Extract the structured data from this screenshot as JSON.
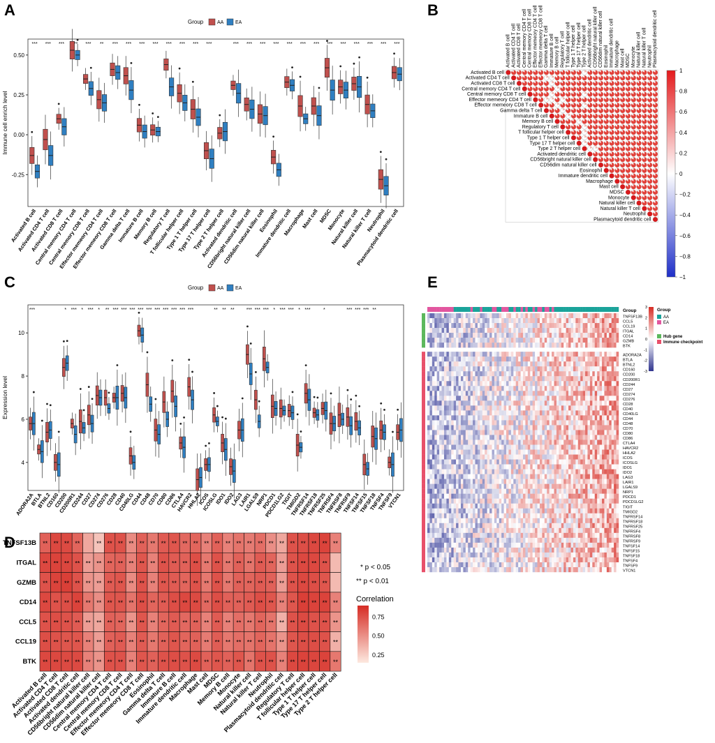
{
  "panels": {
    "a": {
      "letter": "A"
    },
    "b": {
      "letter": "B"
    },
    "c": {
      "letter": "C"
    },
    "d": {
      "letter": "D"
    },
    "e": {
      "letter": "E"
    }
  },
  "chart_data": [
    {
      "id": "A",
      "type": "boxplot",
      "title": "",
      "ylabel": "Immune cell enrich level",
      "xlabel": "",
      "ylim": [
        -0.45,
        0.6
      ],
      "yticks": [
        -0.25,
        0.0,
        0.25,
        0.5
      ],
      "ytick_labels": [
        "-0.25",
        "0.00",
        "0.25",
        "0.50"
      ],
      "legend_title": "Group",
      "groups": [
        "AA",
        "EA"
      ],
      "group_colors": [
        "#c0504d",
        "#2f7fc1"
      ],
      "categories": [
        "Activated B cell",
        "Activated CD4 T cell",
        "Activated CD8 T cell",
        "Central memory CD4 T cell",
        "Central memory CD8 T cell",
        "Effector memeory CD4 T cell",
        "Effector memeory CD8 T cell",
        "Gamma delta T cell",
        "Immature  B cell",
        "Memory B cell",
        "Regulatory T cell",
        "T follicular helper cell",
        "Type 1 T helper cell",
        "Type 17 T helper cell",
        "Type 2 T helper cell",
        "Activated dendritic cell",
        "CD56bright natural killer cell",
        "CD56dim natural killer cell",
        "Eosinophil",
        "Immature dendritic cell",
        "Macrophage",
        "Mast cell",
        "MDSC",
        "Monocyte",
        "Natural killer cell",
        "Natural killer T cell",
        "Neutrophil",
        "Plasmacytoid dendritic cell"
      ],
      "significance": [
        "***",
        "***",
        "***",
        "***",
        "***",
        "**",
        "***",
        "***",
        "***",
        "***",
        "***",
        "***",
        "***",
        "***",
        "",
        "***",
        "***",
        "***",
        "***",
        "***",
        "***",
        "***",
        "***",
        "***",
        "***",
        "***",
        "***",
        "***"
      ],
      "series": [
        {
          "name": "AA",
          "medians": [
            -0.13,
            -0.03,
            0.1,
            0.53,
            0.35,
            0.22,
            0.41,
            0.37,
            0.06,
            0.03,
            0.44,
            0.26,
            0.16,
            -0.1,
            0.01,
            0.31,
            0.19,
            0.13,
            -0.14,
            0.33,
            0.18,
            0.18,
            0.42,
            0.3,
            0.32,
            0.19,
            -0.28,
            0.39
          ]
        },
        {
          "name": "EA",
          "medians": [
            -0.23,
            -0.13,
            0.05,
            0.5,
            0.29,
            0.2,
            0.39,
            0.28,
            0.02,
            0.02,
            0.3,
            0.2,
            0.11,
            -0.15,
            0.02,
            0.26,
            0.16,
            0.12,
            -0.22,
            0.31,
            0.1,
            0.12,
            0.28,
            0.28,
            0.3,
            0.15,
            -0.32,
            0.38
          ]
        }
      ]
    },
    {
      "id": "B",
      "type": "correlogram",
      "labels": [
        "Activated B cell",
        "Activated CD4 T cell",
        "Activated CD8 T cell",
        "Central memory CD4 T cell",
        "Central memory CD8 T cell",
        "Effector memeory CD4 T cell",
        "Effector memeory CD8 T cell",
        "Gamma delta T cell",
        "Immature  B cell",
        "Memory B cell",
        "Regulatory T cell",
        "T follicular helper cell",
        "Type 1 T helper cell",
        "Type 17 T helper cell",
        "Type 2 T helper cell",
        "Activated dendritic cell",
        "CD56bright natural killer cell",
        "CD56dim natural killer cell",
        "Eosinophil",
        "Immature dendritic cell",
        "Macrophage",
        "Mast cell",
        "MDSC",
        "Monocyte",
        "Natural killer cell",
        "Natural killer T cell",
        "Neutrophil",
        "Plasmacytoid dendritic cell"
      ],
      "colorbar": {
        "min": -1,
        "max": 1,
        "ticks": [
          1,
          0.8,
          0.6,
          0.4,
          0.2,
          0,
          -0.2,
          -0.4,
          -0.6,
          -0.8,
          -1
        ],
        "tick_labels": [
          "1",
          "0.8",
          "0.6",
          "0.4",
          "0.2",
          "0",
          "−0.2",
          "−0.4",
          "−0.6",
          "−0.8",
          "−1"
        ]
      },
      "weak_cells": [
        [
          1,
          7
        ],
        [
          1,
          8
        ],
        [
          2,
          8
        ],
        [
          3,
          9
        ],
        [
          4,
          8
        ],
        [
          5,
          7
        ],
        [
          5,
          8
        ],
        [
          5,
          10
        ],
        [
          6,
          9
        ],
        [
          8,
          11
        ],
        [
          7,
          10
        ],
        [
          9,
          13
        ],
        [
          10,
          14
        ],
        [
          11,
          14
        ],
        [
          12,
          14
        ],
        [
          13,
          14
        ],
        [
          4,
          14
        ],
        [
          6,
          14
        ],
        [
          0,
          14
        ],
        [
          14,
          15
        ],
        [
          14,
          16
        ]
      ],
      "correlation_default": 0.85
    },
    {
      "id": "C",
      "type": "boxplot",
      "ylabel": "Expression level",
      "ylim": [
        2.7,
        11.3
      ],
      "yticks": [
        4,
        6,
        8,
        10
      ],
      "ytick_labels": [
        "4",
        "6",
        "8",
        "10"
      ],
      "legend_title": "Group",
      "groups": [
        "AA",
        "EA"
      ],
      "group_colors": [
        "#c0504d",
        "#2f7fc1"
      ],
      "categories": [
        "ADORA2A",
        "BTLA",
        "BTNL2",
        "CD160",
        "CD200",
        "CD200R1",
        "CD244",
        "CD27",
        "CD274",
        "CD276",
        "CD28",
        "CD40",
        "CD40LG",
        "CD44",
        "CD48",
        "CD70",
        "CD80",
        "CD86",
        "CTLA4",
        "HAVCR2",
        "HHLA2",
        "ICOS",
        "ICOSLG",
        "IDO1",
        "IDO2",
        "LAG3",
        "LAIR1",
        "LGALS9",
        "NRP1",
        "PDCD1",
        "PDCD1LG2",
        "TIGIT",
        "TMIGD2",
        "TNFRSF14",
        "TNFRSF18",
        "TNFRSF25",
        "TNFRSF4",
        "TNFRSF8",
        "TNFRSF9",
        "TNFSF14",
        "TNFSF15",
        "TNFSF18",
        "TNFSF4",
        "TNFSF9",
        "VTCN1"
      ],
      "significance": [
        "***",
        "",
        "",
        "",
        "*",
        "***",
        "*",
        "***",
        "*",
        "**",
        "***",
        "***",
        "***",
        "***",
        "***",
        "***",
        "***",
        "***",
        "***",
        "***",
        "",
        "",
        "**",
        "**",
        "**",
        "",
        "***",
        "***",
        "***",
        "*",
        "***",
        "***",
        "*",
        "***",
        "",
        "*",
        "",
        "",
        "***",
        "***",
        "***",
        "**",
        "",
        "",
        ""
      ],
      "series": [
        {
          "name": "AA",
          "medians": [
            5.8,
            4.6,
            5.4,
            4.0,
            8.4,
            5.8,
            5.9,
            6.2,
            7.1,
            7.0,
            7.0,
            7.2,
            4.3,
            10.1,
            7.6,
            5.5,
            6.8,
            7.3,
            4.9,
            7.5,
            3.2,
            3.9,
            6.2,
            4.9,
            3.8,
            5.5,
            9.0,
            6.9,
            8.8,
            6.6,
            6.5,
            6.4,
            4.8,
            7.2,
            6.3,
            6.5,
            5.8,
            6.2,
            6.1,
            5.9,
            3.9,
            5.2,
            5.5,
            4.0,
            5.4
          ]
        },
        {
          "name": "EA",
          "medians": [
            5.8,
            4.5,
            5.5,
            3.9,
            8.6,
            5.3,
            5.6,
            5.8,
            7.0,
            6.5,
            7.0,
            7.0,
            4.0,
            9.9,
            6.7,
            5.3,
            6.0,
            6.6,
            4.7,
            6.9,
            3.3,
            3.9,
            5.9,
            4.6,
            3.6,
            5.5,
            8.1,
            5.9,
            8.4,
            6.5,
            6.4,
            6.3,
            4.7,
            6.9,
            6.2,
            6.4,
            5.8,
            6.0,
            5.7,
            5.6,
            3.7,
            5.1,
            5.4,
            3.9,
            5.5
          ]
        }
      ]
    },
    {
      "id": "D",
      "type": "heatmap",
      "rows": [
        "TNFSF13B",
        "ITGAL",
        "GZMB",
        "CD14",
        "CCL5",
        "CCL19",
        "BTK"
      ],
      "columns": [
        "Activated B cell",
        "Activated CD4 T cell",
        "Activated CD8 T cell",
        "Activated dendritic cell",
        "CD56bright natural killer cell",
        "CD56dim natural killer cell",
        "Central memory CD4 T cell",
        "Central memory CD8 T cell",
        "Effector memeory CD4 T cell",
        "Effector memeory CD8 T cell",
        "Eosinophil",
        "Gamma delta T cell",
        "Immature  B cell",
        "Immature dendritic cell",
        "Macrophage",
        "Mast cell",
        "MDSC",
        "Memory B cell",
        "Monocyte",
        "Natural killer cell",
        "Natural killer T cell",
        "Neutrophil",
        "Plasmacytoid dendritic cell",
        "Regulatory T cell",
        "T follicular helper cell",
        "Type 1 T helper cell",
        "Type 17 T helper cell",
        "Type 2 T helper cell"
      ],
      "values": [
        [
          0.72,
          0.85,
          0.84,
          0.7,
          0.35,
          0.2,
          0.8,
          0.8,
          0.5,
          0.72,
          0.6,
          0.75,
          0.78,
          0.68,
          0.7,
          0.55,
          0.72,
          0.55,
          0.62,
          0.58,
          0.65,
          0.48,
          0.35,
          0.8,
          0.82,
          0.85,
          0.88,
          0.55
        ],
        [
          0.85,
          0.88,
          0.86,
          0.8,
          0.4,
          0.45,
          0.7,
          0.72,
          0.55,
          0.78,
          0.55,
          0.8,
          0.75,
          0.72,
          0.82,
          0.6,
          0.8,
          0.6,
          0.72,
          0.62,
          0.75,
          0.7,
          0.4,
          0.8,
          0.85,
          0.85,
          0.8,
          0.25
        ],
        [
          0.8,
          0.88,
          0.9,
          0.8,
          0.45,
          0.4,
          0.75,
          0.78,
          0.5,
          0.8,
          0.55,
          0.78,
          0.75,
          0.7,
          0.8,
          0.6,
          0.8,
          0.6,
          0.72,
          0.7,
          0.75,
          0.72,
          0.4,
          0.8,
          0.85,
          0.82,
          0.78,
          0.25
        ],
        [
          0.85,
          0.8,
          0.82,
          0.88,
          0.6,
          0.48,
          0.78,
          0.78,
          0.62,
          0.82,
          0.7,
          0.75,
          0.82,
          0.85,
          0.84,
          0.68,
          0.82,
          0.72,
          0.72,
          0.75,
          0.82,
          0.78,
          0.55,
          0.78,
          0.9,
          0.88,
          0.88,
          0.55
        ],
        [
          0.8,
          0.82,
          0.8,
          0.75,
          0.4,
          0.35,
          0.72,
          0.7,
          0.45,
          0.78,
          0.55,
          0.7,
          0.75,
          0.68,
          0.72,
          0.55,
          0.75,
          0.55,
          0.65,
          0.6,
          0.7,
          0.62,
          0.3,
          0.8,
          0.84,
          0.8,
          0.8,
          0.45
        ],
        [
          0.82,
          0.8,
          0.78,
          0.78,
          0.55,
          0.4,
          0.72,
          0.75,
          0.55,
          0.75,
          0.6,
          0.72,
          0.78,
          0.7,
          0.72,
          0.58,
          0.74,
          0.6,
          0.65,
          0.62,
          0.7,
          0.62,
          0.45,
          0.78,
          0.82,
          0.82,
          0.8,
          0.3
        ],
        [
          0.85,
          0.85,
          0.84,
          0.84,
          0.55,
          0.45,
          0.8,
          0.8,
          0.55,
          0.78,
          0.72,
          0.8,
          0.82,
          0.8,
          0.84,
          0.72,
          0.78,
          0.72,
          0.78,
          0.62,
          0.8,
          0.8,
          0.55,
          0.85,
          0.88,
          0.86,
          0.88,
          0.6
        ]
      ],
      "stars": [
        [
          "**",
          "**",
          "**",
          "**",
          "",
          "**",
          "**",
          "**",
          "**",
          "**",
          "**",
          "**",
          "**",
          "**",
          "**",
          "**",
          "**",
          "**",
          "**",
          "**",
          "**",
          "**",
          "**",
          "**",
          "**",
          "**",
          "**",
          "**"
        ],
        [
          "**",
          "**",
          "**",
          "**",
          "**",
          "**",
          "**",
          "**",
          "**",
          "**",
          "**",
          "**",
          "**",
          "**",
          "**",
          "**",
          "**",
          "**",
          "**",
          "**",
          "**",
          "**",
          "**",
          "**",
          "**",
          "**",
          "**",
          ""
        ],
        [
          "**",
          "**",
          "**",
          "**",
          "**",
          "**",
          "**",
          "**",
          "**",
          "**",
          "**",
          "**",
          "**",
          "**",
          "**",
          "**",
          "**",
          "**",
          "**",
          "**",
          "**",
          "**",
          "**",
          "**",
          "**",
          "**",
          "**",
          ""
        ],
        [
          "**",
          "**",
          "**",
          "**",
          "**",
          "**",
          "**",
          "**",
          "**",
          "**",
          "**",
          "**",
          "**",
          "**",
          "**",
          "**",
          "**",
          "**",
          "**",
          "**",
          "**",
          "**",
          "**",
          "**",
          "**",
          "**",
          "**",
          "**"
        ],
        [
          "**",
          "**",
          "**",
          "**",
          "**",
          "**",
          "**",
          "**",
          "**",
          "**",
          "**",
          "**",
          "**",
          "**",
          "**",
          "**",
          "**",
          "**",
          "**",
          "**",
          "**",
          "**",
          "**",
          "**",
          "**",
          "**",
          "**",
          "**"
        ],
        [
          "**",
          "**",
          "**",
          "**",
          "**",
          "**",
          "**",
          "**",
          "**",
          "**",
          "**",
          "**",
          "**",
          "**",
          "**",
          "**",
          "**",
          "**",
          "**",
          "**",
          "**",
          "**",
          "**",
          "**",
          "**",
          "**",
          "**",
          "**"
        ],
        [
          "**",
          "**",
          "**",
          "**",
          "**",
          "**",
          "**",
          "**",
          "**",
          "**",
          "**",
          "**",
          "**",
          "**",
          "**",
          "**",
          "**",
          "**",
          "**",
          "**",
          "**",
          "**",
          "**",
          "**",
          "**",
          "**",
          "**",
          "**"
        ]
      ],
      "notes": [
        "* p < 0.05",
        "** p < 0.01"
      ],
      "legend_title": "Correlation",
      "legend_ticks": [
        0.75,
        0.5,
        0.25
      ],
      "legend_tick_labels": [
        "0.75",
        "0.50",
        "0.25"
      ]
    },
    {
      "id": "E",
      "type": "heatmap",
      "row_labels": [
        "TNFSF13B",
        "CCL5",
        "CCL19",
        "ITGAL",
        "CD14",
        "GZMB",
        "BTK",
        "ADORA2A",
        "BTLA",
        "BTNL2",
        "CD160",
        "CD200",
        "CD200R1",
        "CD244",
        "CD27",
        "CD274",
        "CD276",
        "CD28",
        "CD40",
        "CD40LG",
        "CD44",
        "CD48",
        "CD70",
        "CD80",
        "CD86",
        "CTLA4",
        "HAVCR2",
        "HHLA2",
        "ICOS",
        "ICOSLG",
        "IDO1",
        "IDO2",
        "LAG3",
        "LAIR1",
        "LGALS9",
        "NRP1",
        "PDCD1",
        "PDCD1LG2",
        "TIGIT",
        "TMIGD2",
        "TNFRSF14",
        "TNFRSF18",
        "TNFRSF25",
        "TNFRSF4",
        "TNFRSF8",
        "TNFRSF9",
        "TNFSF14",
        "TNFSF15",
        "TNFSF18",
        "TNFSF4",
        "TNFSF9",
        "VTCN1"
      ],
      "hub_gene_count": 7,
      "n_samples": 80,
      "top_annotation_label": "Group",
      "scale": {
        "min": -3,
        "max": 3,
        "ticks": [
          3,
          2,
          1,
          0,
          -1,
          -2,
          -3
        ],
        "tick_labels": [
          "3",
          "2",
          "1",
          "0",
          "-1",
          "-2",
          "-3"
        ]
      },
      "legend1_title": "Group",
      "legend1_items": [
        "AA",
        "EA"
      ],
      "legend1_colors": [
        "#1aa39a",
        "#e2569f"
      ],
      "legend2_items": [
        "Hub gene",
        "Immune checkpoint"
      ],
      "legend2_colors": [
        "#5cb85c",
        "#e8506a"
      ]
    }
  ]
}
